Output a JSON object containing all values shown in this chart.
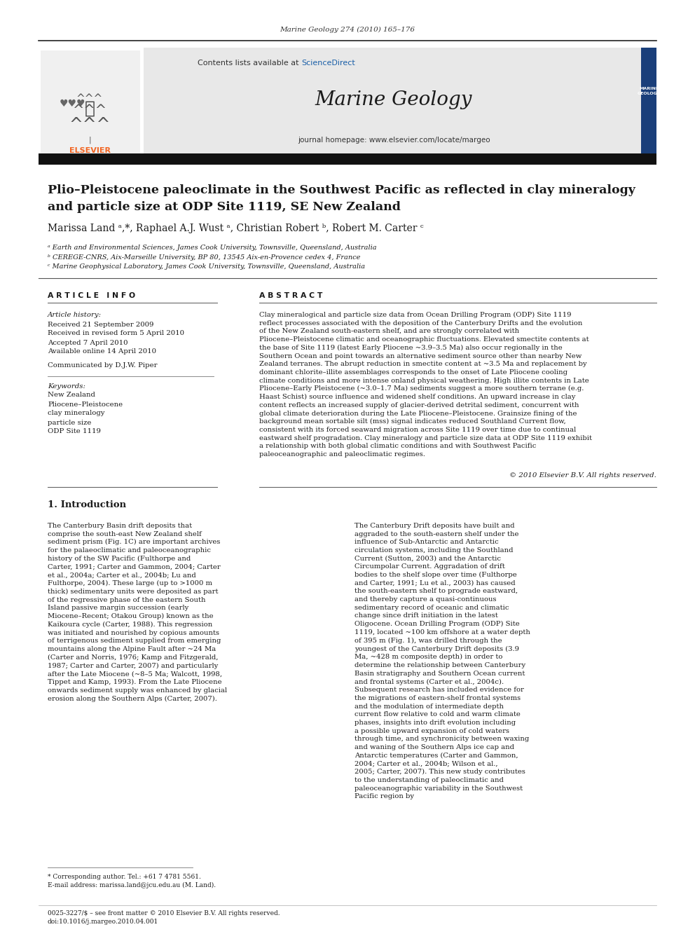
{
  "page_width": 9.92,
  "page_height": 13.23,
  "bg_color": "#ffffff",
  "journal_ref": "Marine Geology 274 (2010) 165–176",
  "contents_text": "Contents lists available at ",
  "sciencedirect_text": "ScienceDirect",
  "journal_name": "Marine Geology",
  "journal_homepage": "journal homepage: www.elsevier.com/locate/margeo",
  "header_bg": "#e8e8e8",
  "title_line1": "Plio–Pleistocene paleoclimate in the Southwest Pacific as reflected in clay mineralogy",
  "title_line2": "and particle size at ODP Site 1119, SE New Zealand",
  "authors": "Marissa Land ᵃ,*, Raphael A.J. Wust ᵃ, Christian Robert ᵇ, Robert M. Carter ᶜ",
  "affil_a": "ᵃ Earth and Environmental Sciences, James Cook University, Townsville, Queensland, Australia",
  "affil_b": "ᵇ CEREGE-CNRS, Aix-Marseille University, BP 80, 13545 Aix-en-Provence cedex 4, France",
  "affil_c": "ᶜ Marine Geophysical Laboratory, James Cook University, Townsville, Queensland, Australia",
  "article_info_title": "A R T I C L E   I N F O",
  "abstract_title": "A B S T R A C T",
  "article_history_label": "Article history:",
  "received": "Received 21 September 2009",
  "revised": "Received in revised form 5 April 2010",
  "accepted": "Accepted 7 April 2010",
  "online": "Available online 14 April 2010",
  "communicated": "Communicated by D.J.W. Piper",
  "keywords_label": "Keywords:",
  "keyword1": "New Zealand",
  "keyword2": "Pliocene–Pleistocene",
  "keyword3": "clay mineralogy",
  "keyword4": "particle size",
  "keyword5": "ODP Site 1119",
  "abstract_text": "Clay mineralogical and particle size data from Ocean Drilling Program (ODP) Site 1119 reflect processes associated with the deposition of the Canterbury Drifts and the evolution of the New Zealand south-eastern shelf, and are strongly correlated with Pliocene–Pleistocene climatic and oceanographic fluctuations. Elevated smectite contents at the base of Site 1119 (latest Early Pliocene ~3.9–3.5 Ma) also occur regionally in the Southern Ocean and point towards an alternative sediment source other than nearby New Zealand terranes. The abrupt reduction in smectite content at ~3.5 Ma and replacement by dominant chlorite–illite assemblages corresponds to the onset of Late Pliocene cooling climate conditions and more intense onland physical weathering. High illite contents in Late Pliocene–Early Pleistocene (~3.0–1.7 Ma) sediments suggest a more southern terrane (e.g. Haast Schist) source influence and widened shelf conditions. An upward increase in clay content reflects an increased supply of glacier-derived detrital sediment, concurrent with global climate deterioration during the Late Pliocene–Pleistocene. Grainsize fining of the background mean sortable silt (mss) signal indicates reduced Southland Current flow, consistent with its forced seaward migration across Site 1119 over time due to continual eastward shelf progradation. Clay mineralogy and particle size data at ODP Site 1119 exhibit a relationship with both global climatic conditions and with Southwest Pacific paleoceanographic and paleoclimatic regimes.",
  "copyright": "© 2010 Elsevier B.V. All rights reserved.",
  "section1_title": "1. Introduction",
  "intro_col1": "    The Canterbury Basin drift deposits that comprise the south-east New Zealand shelf sediment prism (Fig. 1C) are important archives for the palaeoclimatic and paleoceanographic history of the SW Pacific (Fulthorpe and Carter, 1991; Carter and Gammon, 2004; Carter et al., 2004a; Carter et al., 2004b; Lu and Fulthorpe, 2004). These large (up to >1000 m thick) sedimentary units were deposited as part of the regressive phase of the eastern South Island passive margin succession (early Miocene–Recent; Otakou Group) known as the Kaikoura cycle (Carter, 1988). This regression was initiated and nourished by copious amounts of terrigenous sediment supplied from emerging mountains along the Alpine Fault after ~24 Ma (Carter and Norris, 1976; Kamp and Fitzgerald, 1987; Carter and Carter, 2007) and particularly after the Late Miocene (~8–5 Ma; Walcott, 1998, Tippet and Kamp, 1993). From the Late Pliocene onwards sediment supply was enhanced by glacial erosion along the Southern Alps (Carter, 2007).",
  "intro_col2_p1": "    The Canterbury Drift deposits have built and aggraded to the south-eastern shelf under the influence of Sub-Antarctic and Antarctic circulation systems, including the Southland Current (Sutton, 2003) and the Antarctic Circumpolar Current. Aggradation of drift bodies to the shelf slope over time (Fulthorpe and Carter, 1991; Lu et al., 2003) has caused the south-eastern shelf to prograde eastward, and thereby capture a quasi-continuous sedimentary record of oceanic and climatic change since drift initiation in the latest Oligocene.",
  "intro_col2_p2": "    Ocean Drilling Program (ODP) Site 1119, located ~100 km offshore at a water depth of 395 m (Fig. 1), was drilled through the youngest of the Canterbury Drift deposits (3.9 Ma, ~428 m composite depth) in order to determine the relationship between Canterbury Basin stratigraphy and Southern Ocean current and frontal systems (Carter et al., 2004c). Subsequent research has included evidence for the migrations of eastern-shelf frontal systems and the modulation of intermediate depth current flow relative to cold and warm climate phases, insights into drift evolution including a possible upward expansion of cold waters through time, and synchronicity between waxing and waning of the Southern Alps ice cap and Antarctic temperatures (Carter and Gammon, 2004; Carter et al., 2004b; Wilson et al., 2005; Carter, 2007).",
  "intro_col2_p3": "    This new study contributes to the understanding of paleoclimatic and paleoceanographic variability in the Southwest Pacific region by",
  "footnote1": "* Corresponding author. Tel.: +61 7 4781 5561.",
  "footnote2": "E-mail address: marissa.land@jcu.edu.au (M. Land).",
  "footer1": "0025-3227/$ – see front matter © 2010 Elsevier B.V. All rights reserved.",
  "footer2": "doi:10.1016/j.margeo.2010.04.001",
  "link_color": "#1a5fa8",
  "orange_color": "#f26522",
  "dark_color": "#1a1a1a"
}
